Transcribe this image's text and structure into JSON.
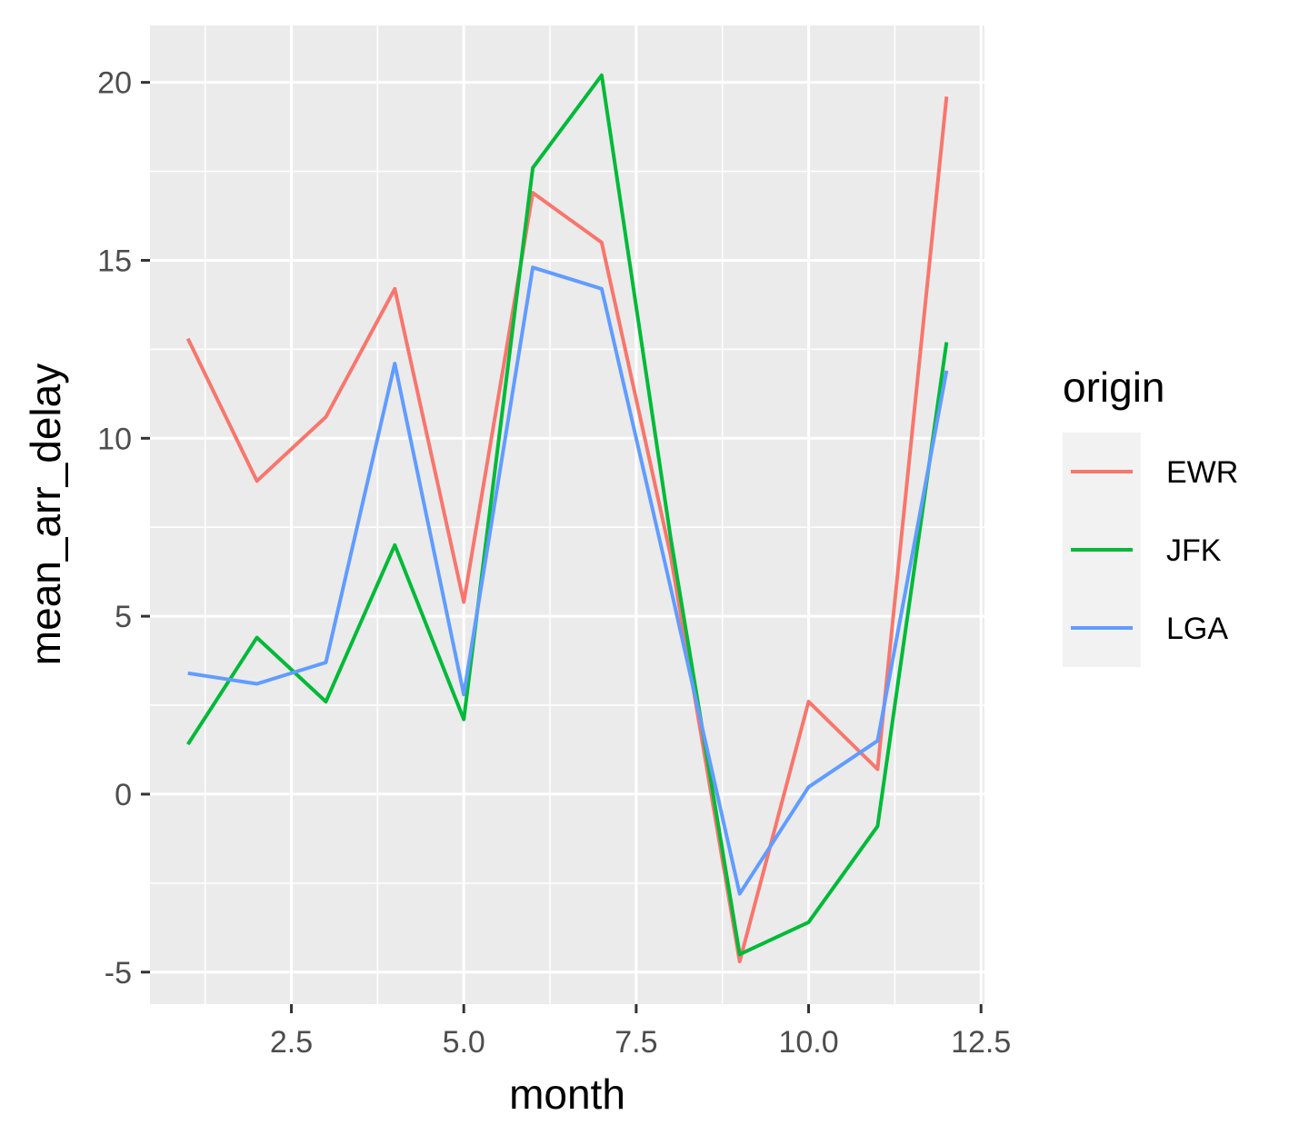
{
  "chart_data": {
    "type": "line",
    "title": "",
    "xlabel": "month",
    "ylabel": "mean_arr_delay",
    "xlim": [
      0.45,
      12.55
    ],
    "ylim": [
      -5.9,
      21.6
    ],
    "x_ticks": [
      2.5,
      5.0,
      7.5,
      10.0,
      12.5
    ],
    "x_tick_labels": [
      "2.5",
      "5.0",
      "7.5",
      "10.0",
      "12.5"
    ],
    "x_minor_ticks": [
      1.25,
      3.75,
      6.25,
      8.75,
      11.25
    ],
    "y_ticks": [
      -5,
      0,
      5,
      10,
      15,
      20
    ],
    "y_tick_labels": [
      "-5",
      "0",
      "5",
      "10",
      "15",
      "20"
    ],
    "y_minor_ticks": [
      -2.5,
      2.5,
      7.5,
      12.5,
      17.5
    ],
    "grid": true,
    "legend": {
      "title": "origin",
      "placement": "right"
    },
    "x": [
      1,
      2,
      3,
      4,
      5,
      6,
      7,
      8,
      9,
      10,
      11,
      12
    ],
    "series": [
      {
        "name": "EWR",
        "color": "#F8766D",
        "values": [
          12.8,
          8.8,
          10.6,
          14.2,
          5.4,
          16.9,
          15.5,
          6.7,
          -4.7,
          2.6,
          0.7,
          19.6
        ]
      },
      {
        "name": "JFK",
        "color": "#00BA38",
        "values": [
          1.4,
          4.4,
          2.6,
          7.0,
          2.1,
          17.6,
          20.2,
          7.2,
          -4.5,
          -3.6,
          -0.9,
          12.7
        ]
      },
      {
        "name": "LGA",
        "color": "#619CFF",
        "values": [
          3.4,
          3.1,
          3.7,
          12.1,
          2.8,
          14.8,
          14.2,
          5.8,
          -2.8,
          0.2,
          1.5,
          11.9
        ]
      }
    ]
  }
}
